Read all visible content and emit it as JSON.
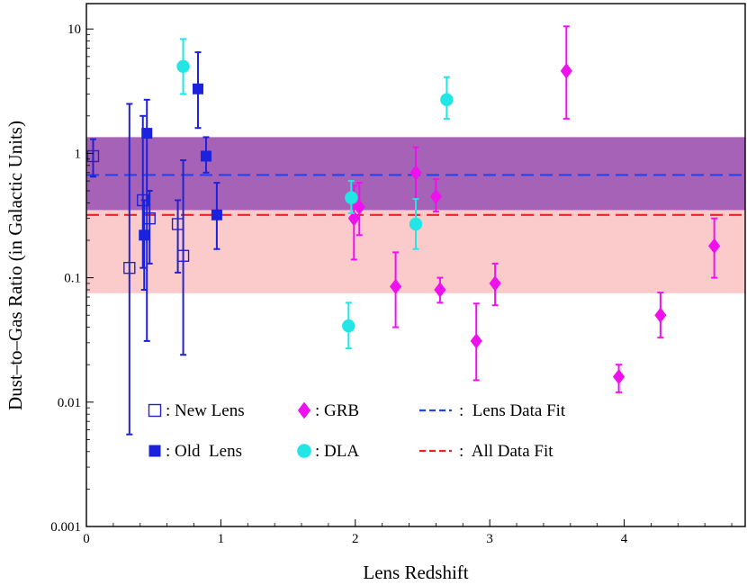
{
  "chart_data": {
    "type": "scatter",
    "xlabel": "Lens Redshift",
    "ylabel": "Dust–to–Gas Ratio (in Galactic Units)",
    "xlim": [
      0,
      4.9
    ],
    "ylim": [
      0.001,
      16
    ],
    "yscale": "log",
    "x_ticks": [
      0,
      1,
      2,
      3,
      4
    ],
    "x_tick_labels": [
      "0",
      "1",
      "2",
      "3",
      "4"
    ],
    "y_ticks": [
      0.001,
      0.01,
      0.1,
      1,
      10
    ],
    "y_tick_labels": [
      "0.001",
      "0.01",
      "0.1",
      "1",
      "10"
    ],
    "bands": [
      {
        "name": "All Data Fit range",
        "ymin": 0.075,
        "ymax": 1.35,
        "color": "#f7a0a0",
        "opacity": 0.55
      },
      {
        "name": "Lens Data Fit range",
        "ymin": 0.35,
        "ymax": 1.35,
        "color": "#8a3fb0",
        "opacity": 0.75
      }
    ],
    "fit_lines": [
      {
        "name": "Lens Data Fit",
        "y": 0.67,
        "color": "#2244ee"
      },
      {
        "name": "All Data Fit",
        "y": 0.32,
        "color": "#ee2222"
      }
    ],
    "series": [
      {
        "name": "New Lens",
        "marker": "open-square",
        "color": "#2222cc",
        "points": [
          {
            "x": 0.05,
            "y": 0.95,
            "lo": 0.65,
            "hi": 1.3
          },
          {
            "x": 0.32,
            "y": 0.12,
            "lo": 0.0055,
            "hi": 2.5
          },
          {
            "x": 0.42,
            "y": 0.42,
            "lo": 0.12,
            "hi": 2.0
          },
          {
            "x": 0.47,
            "y": 0.3,
            "lo": 0.13,
            "hi": 0.5
          },
          {
            "x": 0.68,
            "y": 0.27,
            "lo": 0.11,
            "hi": 0.42
          },
          {
            "x": 0.72,
            "y": 0.15,
            "lo": 0.024,
            "hi": 0.88
          }
        ]
      },
      {
        "name": "Old  Lens",
        "marker": "filled-square",
        "color": "#1a22dd",
        "points": [
          {
            "x": 0.43,
            "y": 0.22,
            "lo": 0.08,
            "hi": 0.42
          },
          {
            "x": 0.45,
            "y": 1.45,
            "lo": 0.031,
            "hi": 2.7
          },
          {
            "x": 0.83,
            "y": 3.3,
            "lo": 1.6,
            "hi": 6.5
          },
          {
            "x": 0.89,
            "y": 0.95,
            "lo": 0.7,
            "hi": 1.35
          },
          {
            "x": 0.97,
            "y": 0.32,
            "lo": 0.17,
            "hi": 0.58
          }
        ]
      },
      {
        "name": "GRB",
        "marker": "diamond",
        "color": "#ee11ee",
        "points": [
          {
            "x": 1.99,
            "y": 0.3,
            "lo": 0.14,
            "hi": 0.55
          },
          {
            "x": 2.03,
            "y": 0.37,
            "lo": 0.22,
            "hi": 0.58
          },
          {
            "x": 2.3,
            "y": 0.085,
            "lo": 0.04,
            "hi": 0.16
          },
          {
            "x": 2.45,
            "y": 0.7,
            "lo": 0.43,
            "hi": 1.12
          },
          {
            "x": 2.6,
            "y": 0.45,
            "lo": 0.34,
            "hi": 0.62
          },
          {
            "x": 2.63,
            "y": 0.08,
            "lo": 0.063,
            "hi": 0.1
          },
          {
            "x": 2.9,
            "y": 0.031,
            "lo": 0.015,
            "hi": 0.062
          },
          {
            "x": 3.04,
            "y": 0.09,
            "lo": 0.06,
            "hi": 0.13
          },
          {
            "x": 3.57,
            "y": 4.6,
            "lo": 1.9,
            "hi": 10.5
          },
          {
            "x": 3.96,
            "y": 0.016,
            "lo": 0.012,
            "hi": 0.02
          },
          {
            "x": 4.27,
            "y": 0.05,
            "lo": 0.033,
            "hi": 0.076
          },
          {
            "x": 4.67,
            "y": 0.18,
            "lo": 0.1,
            "hi": 0.3
          }
        ]
      },
      {
        "name": "DLA",
        "marker": "circle",
        "color": "#22e6e6",
        "points": [
          {
            "x": 0.72,
            "y": 5.0,
            "lo": 3.0,
            "hi": 8.3
          },
          {
            "x": 1.95,
            "y": 0.041,
            "lo": 0.027,
            "hi": 0.063
          },
          {
            "x": 1.97,
            "y": 0.44,
            "lo": 0.33,
            "hi": 0.6
          },
          {
            "x": 2.45,
            "y": 0.27,
            "lo": 0.17,
            "hi": 0.43
          },
          {
            "x": 2.68,
            "y": 2.7,
            "lo": 1.9,
            "hi": 4.1
          }
        ]
      }
    ],
    "legend": [
      {
        "label": ": New Lens",
        "marker": "open-square",
        "color": "#2222cc"
      },
      {
        "label": ": Old  Lens",
        "marker": "filled-square",
        "color": "#1a22dd"
      },
      {
        "label": ": GRB",
        "marker": "diamond",
        "color": "#ee11ee"
      },
      {
        "label": ": DLA",
        "marker": "circle",
        "color": "#22e6e6"
      },
      {
        "label": ":  Lens Data Fit",
        "marker": "dash",
        "color": "#2244ee"
      },
      {
        "label": ":  All Data Fit",
        "marker": "dash",
        "color": "#ee2222"
      }
    ]
  }
}
